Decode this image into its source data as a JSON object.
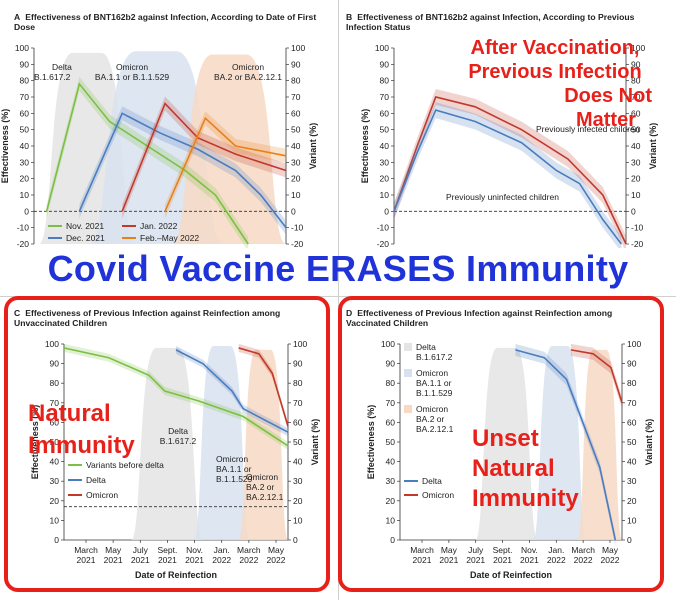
{
  "headline": "Covid Vaccine ERASES Immunity",
  "colors": {
    "delta": "#7bc043",
    "omicron_ba1": "#4a7cc0",
    "jan_red": "#c0392b",
    "feb_orange": "#e8801a",
    "annotation_red": "#e8201a",
    "headline_blue": "#1f33d9",
    "band_blue": "#d8e2ef",
    "band_gray": "#e4e4e4",
    "band_peach": "#f7d9c4"
  },
  "panels": {
    "A": {
      "letter": "A",
      "title": "Effectiveness of BNT162b2 against Infection, According to Date of First Dose",
      "y_left_label": "Effectiveness (%)",
      "y_right_label": "Variant (%)",
      "region_labels": [
        "Delta",
        "B.1.617.2",
        "Omicron",
        "BA.1.1 or B.1.1.529",
        "Omicron",
        "BA.2 or BA.2.12.1"
      ],
      "legend": [
        "Nov. 2021",
        "Dec. 2021",
        "Jan. 2022",
        "Feb.–May 2022"
      ]
    },
    "B": {
      "letter": "B",
      "title": "Effectiveness of BNT162b2 against Infection, According to Previous Infection Status",
      "y_left_label": "Effectiveness (%)",
      "y_right_label": "Variant (%)",
      "curve_labels": [
        "Previously infected children",
        "Previously uninfected children"
      ],
      "annotation": [
        "After Vaccination,",
        "Previous Infection",
        "Does Not",
        "Matter"
      ]
    },
    "C": {
      "letter": "C",
      "title": "Effectiveness of Previous Infection against Reinfection among Unvaccinated Children",
      "y_left_label": "Effectiveness (%)",
      "y_right_label": "Variant (%)",
      "x_label": "Date of Reinfection",
      "region_labels": [
        "Delta",
        "B.1.617.2",
        "Omicron",
        "BA.1.1 or",
        "B.1.1.529",
        "Omicron",
        "BA.2 or",
        "BA.2.12.1"
      ],
      "legend": [
        "Variants before delta",
        "Delta",
        "Omicron"
      ],
      "annotation": [
        "Natural",
        "Immunity"
      ]
    },
    "D": {
      "letter": "D",
      "title": "Effectiveness of Previous Infection against Reinfection among Vaccinated Children",
      "y_left_label": "Effectiveness (%)",
      "y_right_label": "Variant (%)",
      "x_label": "Date of Reinfection",
      "legend_regions": [
        "Delta",
        "B.1.617.2",
        "Omicron",
        "BA.1.1 or",
        "B.1.1.529",
        "Omicron",
        "BA.2 or",
        "BA.2.12.1"
      ],
      "legend": [
        "Delta",
        "Omicron"
      ],
      "annotation": [
        "Unset",
        "Natural",
        "Immunity"
      ]
    }
  },
  "chart_data": [
    {
      "panel": "A",
      "type": "line",
      "title": "Effectiveness of BNT162b2 against Infection, According to Date of First Dose",
      "ylabel": "Effectiveness (%)",
      "y2label": "Variant (%)",
      "ylim": [
        -20,
        100
      ],
      "y2lim": [
        -20,
        100
      ],
      "yticks": [
        -20,
        -10,
        0,
        10,
        20,
        30,
        40,
        50,
        60,
        70,
        80,
        90,
        100
      ],
      "xlim": [
        0,
        100
      ],
      "series": [
        {
          "name": "Nov. 2021",
          "color": "#7bc043",
          "x": [
            5,
            18,
            30,
            45,
            60,
            72,
            85
          ],
          "values": [
            0,
            78,
            55,
            40,
            25,
            10,
            -20
          ]
        },
        {
          "name": "Dec. 2021",
          "color": "#4a7cc0",
          "x": [
            18,
            35,
            50,
            65,
            80,
            90,
            100
          ],
          "values": [
            0,
            60,
            48,
            38,
            25,
            10,
            -10
          ]
        },
        {
          "name": "Jan. 2022",
          "color": "#c0392b",
          "x": [
            35,
            52,
            65,
            80,
            100
          ],
          "values": [
            0,
            66,
            45,
            35,
            25
          ]
        },
        {
          "name": "Feb.–May 2022",
          "color": "#e8801a",
          "x": [
            52,
            68,
            80,
            100
          ],
          "values": [
            0,
            57,
            40,
            34
          ]
        }
      ]
    },
    {
      "panel": "B",
      "type": "line",
      "title": "Effectiveness of BNT162b2 against Infection, According to Previous Infection Status",
      "ylabel": "Effectiveness (%)",
      "y2label": "Variant (%)",
      "ylim": [
        -20,
        100
      ],
      "y2lim": [
        -20,
        100
      ],
      "yticks": [
        -20,
        -10,
        0,
        10,
        20,
        30,
        40,
        50,
        60,
        70,
        80,
        90,
        100
      ],
      "xlim": [
        0,
        100
      ],
      "series": [
        {
          "name": "Previously infected children",
          "color": "#c0392b",
          "x": [
            0,
            10,
            18,
            35,
            55,
            75,
            90,
            100
          ],
          "values": [
            0,
            40,
            70,
            64,
            50,
            32,
            10,
            -20
          ]
        },
        {
          "name": "Previously uninfected children",
          "color": "#4a7cc0",
          "x": [
            0,
            10,
            18,
            35,
            55,
            70,
            80,
            90,
            98
          ],
          "values": [
            0,
            36,
            62,
            55,
            42,
            25,
            17,
            -5,
            -20
          ]
        }
      ]
    },
    {
      "panel": "C",
      "type": "line",
      "title": "Effectiveness of Previous Infection against Reinfection among Unvaccinated Children",
      "xlabel": "Date of Reinfection",
      "ylabel": "Effectiveness (%)",
      "y2label": "Variant (%)",
      "ylim": [
        0,
        100
      ],
      "y2lim": [
        0,
        100
      ],
      "yticks": [
        0,
        10,
        20,
        30,
        40,
        50,
        60,
        70,
        80,
        90,
        100
      ],
      "categories": [
        "March 2021",
        "May 2021",
        "July 2021",
        "Sept. 2021",
        "Nov. 2021",
        "Jan. 2022",
        "March 2022",
        "May 2022"
      ],
      "xlim": [
        0,
        100
      ],
      "series": [
        {
          "name": "Variants before delta",
          "color": "#7bc043",
          "x": [
            0,
            20,
            38,
            45,
            60,
            80,
            100
          ],
          "values": [
            98,
            93,
            84,
            76,
            71,
            63,
            48
          ]
        },
        {
          "name": "Delta",
          "color": "#4a7cc0",
          "x": [
            50,
            62,
            75,
            80,
            100
          ],
          "values": [
            97,
            90,
            76,
            67,
            55
          ]
        },
        {
          "name": "Omicron",
          "color": "#c0392b",
          "x": [
            78,
            87,
            93,
            100
          ],
          "values": [
            98,
            95,
            85,
            58
          ]
        }
      ],
      "reference_line": 17
    },
    {
      "panel": "D",
      "type": "line",
      "title": "Effectiveness of Previous Infection against Reinfection among Vaccinated Children",
      "xlabel": "Date of Reinfection",
      "ylabel": "Effectiveness (%)",
      "y2label": "Variant (%)",
      "ylim": [
        0,
        100
      ],
      "y2lim": [
        0,
        100
      ],
      "yticks": [
        0,
        10,
        20,
        30,
        40,
        50,
        60,
        70,
        80,
        90,
        100
      ],
      "categories": [
        "March 2021",
        "May 2021",
        "July 2021",
        "Sept. 2021",
        "Nov. 2021",
        "Jan. 2022",
        "March 2022",
        "May 2022"
      ],
      "xlim": [
        0,
        100
      ],
      "series": [
        {
          "name": "Delta",
          "color": "#4a7cc0",
          "x": [
            52,
            65,
            75,
            85,
            90,
            97
          ],
          "values": [
            97,
            93,
            82,
            52,
            37,
            0
          ]
        },
        {
          "name": "Omicron",
          "color": "#c0392b",
          "x": [
            77,
            87,
            95,
            100
          ],
          "values": [
            97,
            95,
            88,
            70
          ]
        }
      ]
    }
  ]
}
